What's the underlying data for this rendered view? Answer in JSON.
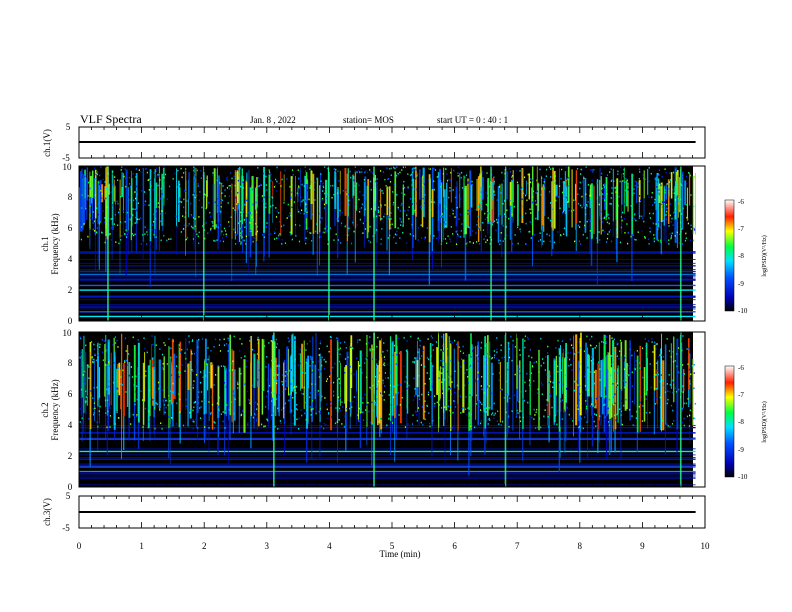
{
  "header": {
    "title": "VLF Spectra",
    "date": "Jan. 8 , 2022",
    "station": "station= MOS",
    "start": "start UT =  0 : 40 : 1"
  },
  "chart_data": [
    {
      "type": "line",
      "panel": "ch1",
      "ylabel": "ch.1(V)",
      "ylim": [
        -5,
        5
      ],
      "yticks": [
        "5",
        "-5"
      ],
      "xlim": [
        0,
        10
      ],
      "series": [
        {
          "x": [
            0,
            9.85
          ],
          "y": [
            0,
            0
          ]
        }
      ]
    },
    {
      "type": "heatmap",
      "panel": "ch1-spectrogram",
      "ylabel": [
        "ch.1",
        "Frequency (kHz)"
      ],
      "ylim": [
        0,
        10
      ],
      "yticks": [
        "0",
        "2",
        "4",
        "6",
        "8",
        "10"
      ],
      "xlim": [
        0,
        10
      ],
      "data_extent_min": 9.85,
      "colorbar": {
        "label": "log(PSD)(V²/Hz)",
        "range": [
          -10,
          -6
        ],
        "ticks": [
          "-6",
          "-7",
          "-8",
          "-9",
          "-10"
        ]
      },
      "steady_lines_khz": [
        0.3,
        0.6,
        1.6,
        2.0,
        2.3,
        2.7,
        3.0,
        3.2,
        4.4
      ],
      "broadband_bursts_min": [
        0.45,
        1.98,
        3.98,
        4.7,
        6.57,
        6.8,
        9.6
      ]
    },
    {
      "type": "heatmap",
      "panel": "ch2-spectrogram",
      "ylabel": [
        "ch.2",
        "Frequency (kHz)"
      ],
      "ylim": [
        0,
        10
      ],
      "yticks": [
        "0",
        "2",
        "4",
        "6",
        "8",
        "10"
      ],
      "xlim": [
        0,
        10
      ],
      "data_extent_min": 9.85,
      "colorbar": {
        "label": "log(PSD)(V²/Hz)",
        "range": [
          -10,
          -6
        ],
        "ticks": [
          "-6",
          "-7",
          "-8",
          "-9",
          "-10"
        ]
      },
      "steady_lines_khz": [
        1.0,
        1.3,
        1.8,
        2.3,
        3.1,
        3.5
      ],
      "broadband_bursts_min": [
        3.1,
        4.7,
        6.8,
        9.6
      ]
    },
    {
      "type": "line",
      "panel": "ch3",
      "ylabel": "ch.3(V)",
      "ylim": [
        -5,
        5
      ],
      "yticks": [
        "5",
        "-5"
      ],
      "xlim": [
        0,
        10
      ],
      "xlabel": "Time (min)",
      "xticks": [
        "0",
        "1",
        "2",
        "3",
        "4",
        "5",
        "6",
        "7",
        "8",
        "9",
        "10"
      ],
      "series": [
        {
          "x": [
            0,
            9.85
          ],
          "y": [
            0,
            0
          ]
        }
      ]
    }
  ]
}
